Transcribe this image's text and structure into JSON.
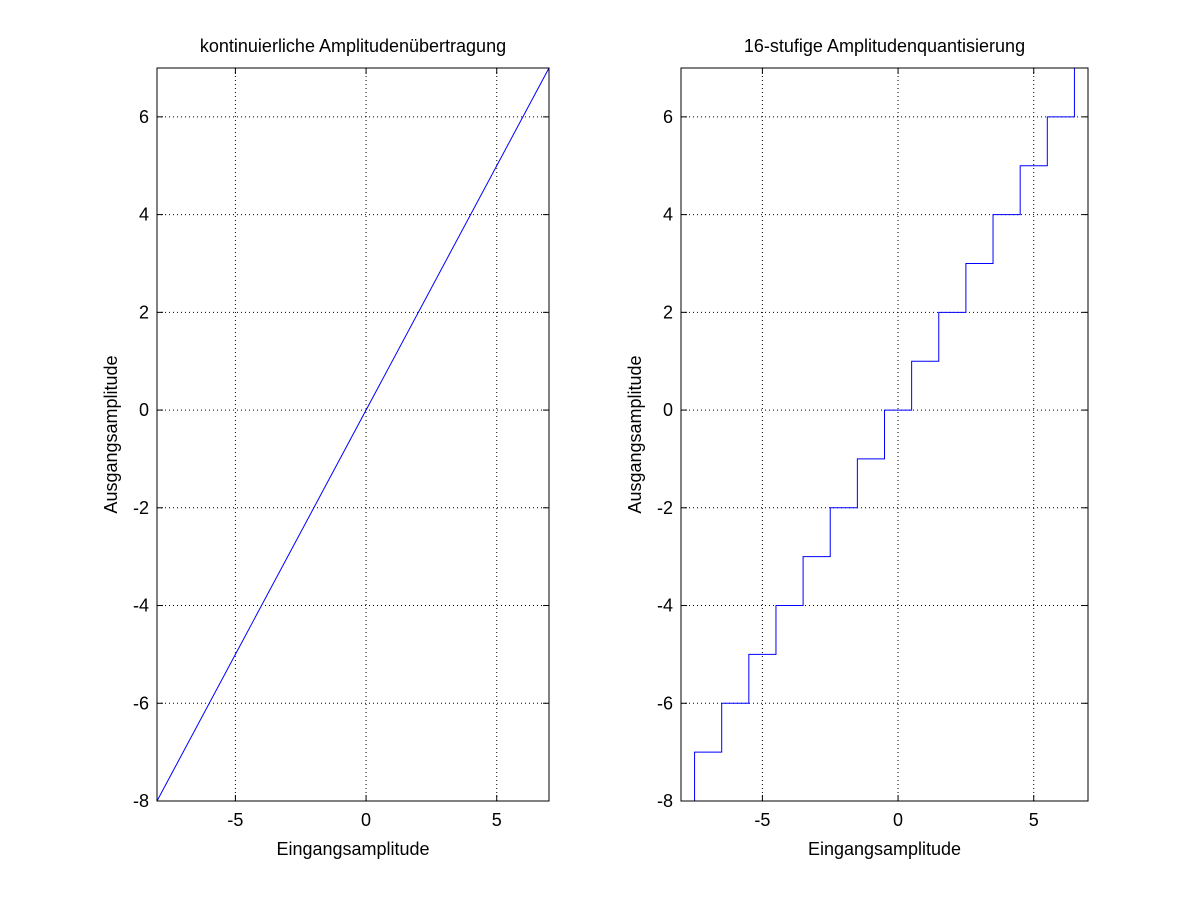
{
  "chart_data": [
    {
      "type": "line",
      "title": "kontinuierliche Amplitudenübertragung",
      "xlabel": "Eingangsamplitude",
      "ylabel": "Ausgangsamplitude",
      "xlim": [
        -8,
        7
      ],
      "ylim": [
        -8,
        7
      ],
      "xticks": [
        -5,
        0,
        5
      ],
      "yticks": [
        -8,
        -6,
        -4,
        -2,
        0,
        2,
        4,
        6
      ],
      "grid": true,
      "color": "#0000ff",
      "series": [
        {
          "x": [
            -8,
            7
          ],
          "y": [
            -8,
            7
          ]
        }
      ]
    },
    {
      "type": "line",
      "title": "16-stufige Amplitudenquantisierung",
      "xlabel": "Eingangsamplitude",
      "ylabel": "Ausgangsamplitude",
      "xlim": [
        -8,
        7
      ],
      "ylim": [
        -8,
        7
      ],
      "xticks": [
        -5,
        0,
        5
      ],
      "yticks": [
        -8,
        -6,
        -4,
        -2,
        0,
        2,
        4,
        6
      ],
      "grid": true,
      "color": "#0000ff",
      "step": true,
      "series": [
        {
          "x": [
            -8,
            -7.5,
            -6.5,
            -5.5,
            -4.5,
            -3.5,
            -2.5,
            -1.5,
            -0.5,
            0.5,
            1.5,
            2.5,
            3.5,
            4.5,
            5.5,
            6.5,
            7
          ],
          "y": [
            -8,
            -7,
            -6,
            -5,
            -4,
            -3,
            -2,
            -1,
            0,
            1,
            2,
            3,
            4,
            5,
            6,
            7,
            7
          ]
        }
      ]
    }
  ]
}
